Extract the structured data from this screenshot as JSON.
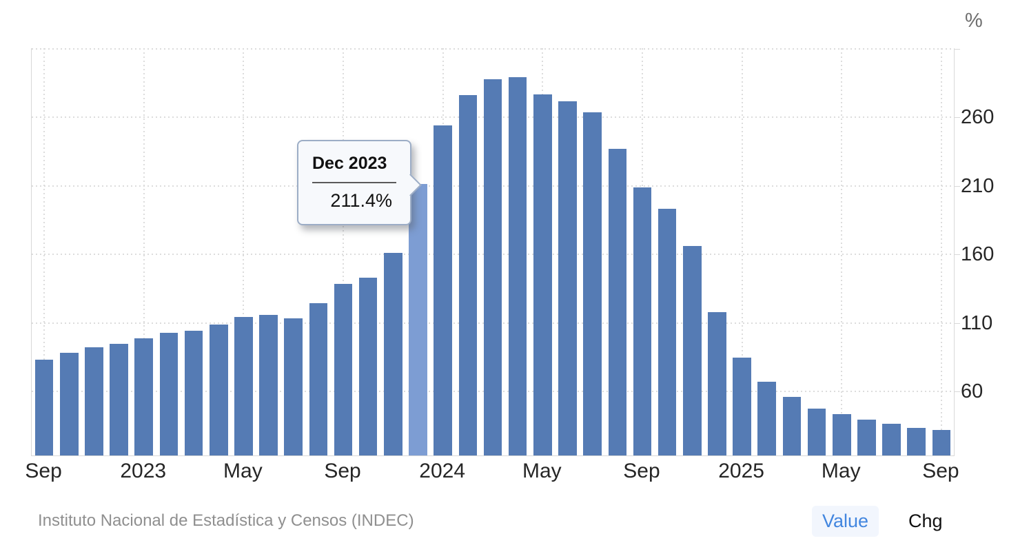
{
  "unit_label": "%",
  "source": "Instituto Nacional de Estadística y Censos (INDEC)",
  "legend": {
    "value_label": "Value",
    "chg_label": "Chg",
    "active": "Value",
    "value_color": "#4286df"
  },
  "tooltip": {
    "title": "Dec 2023",
    "value": "211.4%",
    "points_to": "Dec 2023"
  },
  "chart_data": {
    "type": "bar",
    "ylabel": "%",
    "categories": [
      "Sep 2022",
      "Oct 2022",
      "Nov 2022",
      "Dec 2022",
      "Jan 2023",
      "Feb 2023",
      "Mar 2023",
      "Apr 2023",
      "May 2023",
      "Jun 2023",
      "Jul 2023",
      "Aug 2023",
      "Sep 2023",
      "Oct 2023",
      "Nov 2023",
      "Dec 2023",
      "Jan 2024",
      "Feb 2024",
      "Mar 2024",
      "Apr 2024",
      "May 2024",
      "Jun 2024",
      "Jul 2024",
      "Aug 2024",
      "Sep 2024",
      "Oct 2024",
      "Nov 2024",
      "Dec 2024",
      "Jan 2025",
      "Feb 2025",
      "Mar 2025",
      "Apr 2025",
      "May 2025",
      "Jun 2025",
      "Jul 2025",
      "Aug 2025",
      "Sep 2025"
    ],
    "values": [
      83.0,
      88.0,
      92.4,
      94.8,
      98.8,
      102.5,
      104.3,
      108.8,
      114.2,
      115.6,
      113.4,
      124.4,
      138.3,
      142.7,
      160.9,
      211.4,
      254.2,
      276.2,
      287.9,
      289.4,
      276.4,
      271.5,
      263.4,
      236.7,
      209.0,
      193.0,
      166.0,
      117.8,
      84.5,
      66.9,
      55.9,
      47.3,
      43.5,
      39.4,
      36.6,
      33.6,
      31.8
    ],
    "highlight_index": 15,
    "xtick_positions": [
      0,
      4,
      8,
      12,
      16,
      20,
      24,
      28,
      32,
      36
    ],
    "xtick_labels": [
      "Sep",
      "2023",
      "May",
      "Sep",
      "2024",
      "May",
      "Sep",
      "2025",
      "May",
      "Sep"
    ],
    "ytick_labels": [
      "60",
      "110",
      "160",
      "210",
      "260"
    ],
    "ygrid_values": [
      60,
      110,
      160,
      210,
      260,
      310
    ],
    "ylim": [
      13.3,
      310
    ],
    "grid": "dotted",
    "legend_position": "bottom-right",
    "bar_color": "#557BB4",
    "highlight_color": "#7D9DD3"
  }
}
